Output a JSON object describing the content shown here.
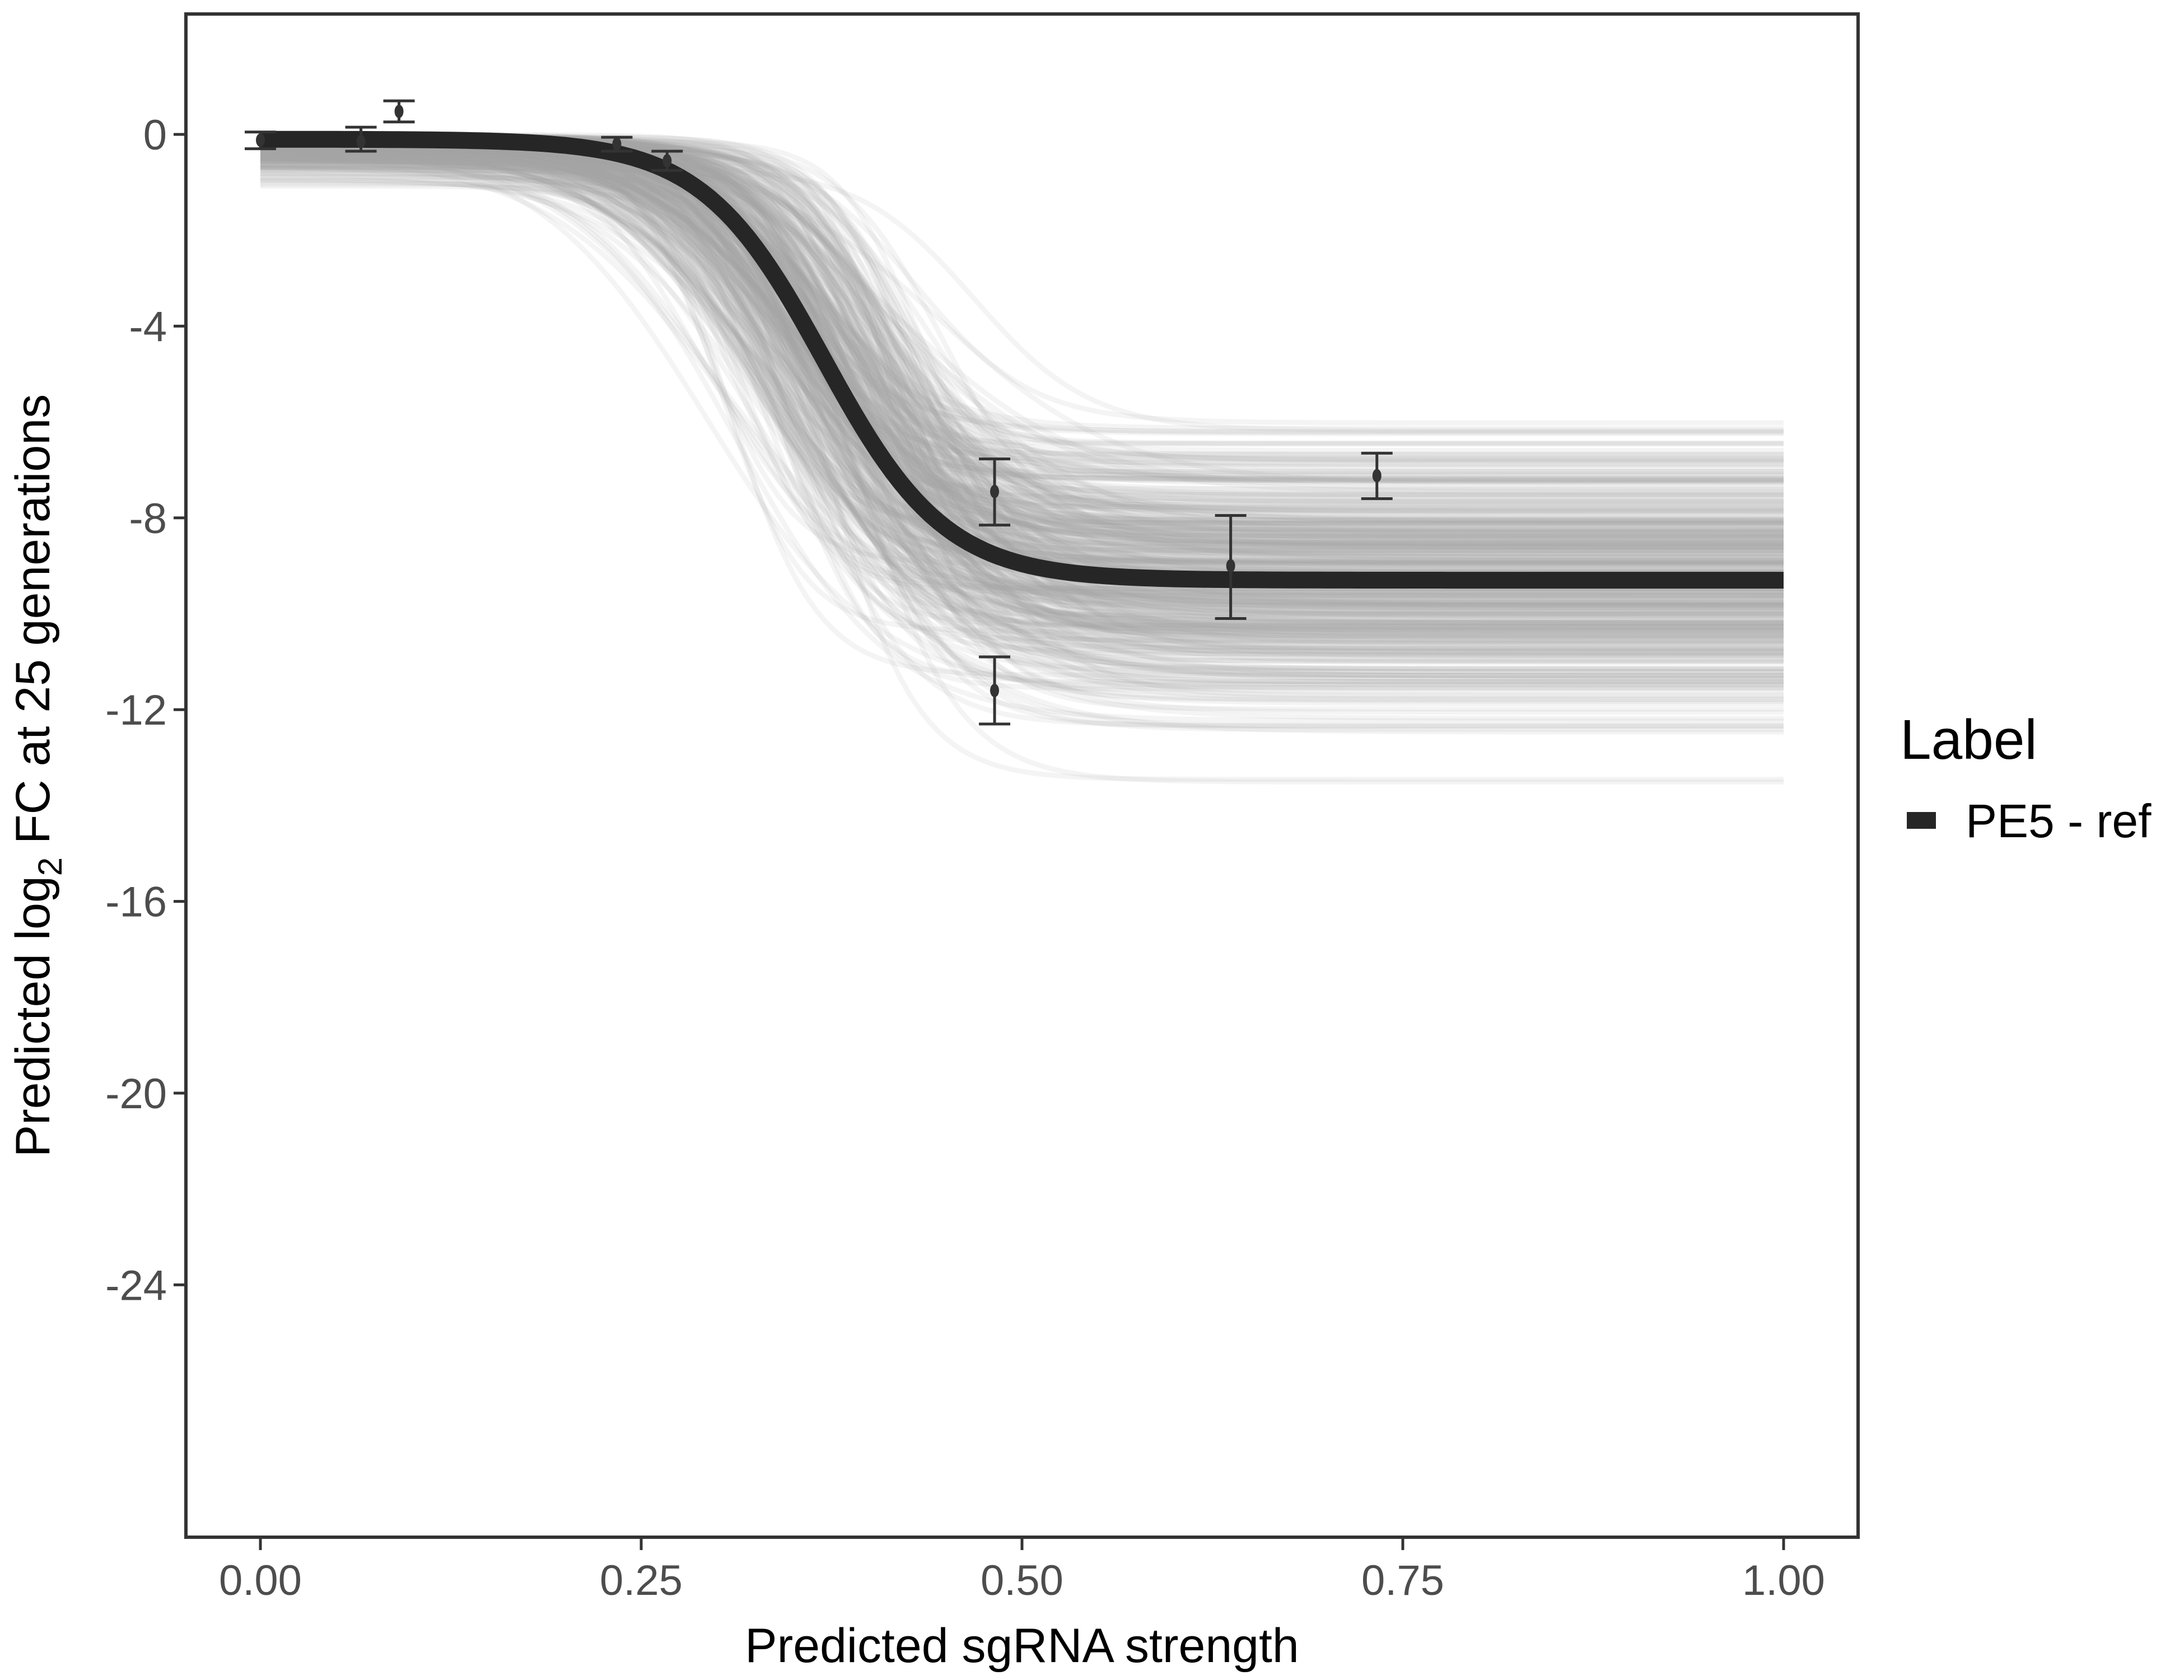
{
  "chart_data": {
    "type": "line",
    "xlabel": "Predicted sgRNA strength",
    "ylabel_parts": {
      "pre": "Predicted  log",
      "sub": "2",
      "post": " FC at 25 generations"
    },
    "xlim": [
      -0.05,
      1.05
    ],
    "ylim": [
      -29.3,
      2.5
    ],
    "x_ticks": [
      0,
      0.25,
      0.5,
      0.75,
      1.0
    ],
    "x_tick_labels": [
      "0.00",
      "0.25",
      "0.50",
      "0.75",
      "1.00"
    ],
    "y_ticks": [
      0,
      -4,
      -8,
      -12,
      -16,
      -20,
      -24
    ],
    "y_tick_labels": [
      "0",
      "-4",
      "-8",
      "-12",
      "-16",
      "-20",
      "-24"
    ],
    "grid": false,
    "legend": {
      "title": "Label",
      "placement": "right",
      "entries": [
        {
          "label": "PE5 - ref",
          "color": "#262626"
        }
      ]
    },
    "fit": {
      "name": "PE5 - ref",
      "model": "logistic",
      "upper": -0.1,
      "lower": -9.3,
      "midpoint": 0.37,
      "scale": 0.04,
      "color": "#262626"
    },
    "posterior_samples": {
      "count": 400,
      "color": "#a6a6a6",
      "upper_range": [
        0,
        -1.3
      ],
      "lower_range": [
        -5.8,
        -14.8
      ],
      "midpoint_range": [
        0.29,
        0.47
      ],
      "scale_range": [
        0.025,
        0.06
      ]
    },
    "points": [
      {
        "x": 0.0,
        "y": -0.12,
        "ymin": -0.3,
        "ymax": 0.05
      },
      {
        "x": 0.066,
        "y": -0.15,
        "ymin": -0.35,
        "ymax": 0.15
      },
      {
        "x": 0.091,
        "y": 0.48,
        "ymin": 0.26,
        "ymax": 0.7
      },
      {
        "x": 0.234,
        "y": -0.2,
        "ymin": -0.35,
        "ymax": -0.06
      },
      {
        "x": 0.267,
        "y": -0.55,
        "ymin": -0.75,
        "ymax": -0.35
      },
      {
        "x": 0.482,
        "y": -7.45,
        "ymin": -8.15,
        "ymax": -6.77
      },
      {
        "x": 0.482,
        "y": -11.6,
        "ymin": -12.3,
        "ymax": -10.9
      },
      {
        "x": 0.637,
        "y": -9.0,
        "ymin": -10.1,
        "ymax": -7.95
      },
      {
        "x": 0.733,
        "y": -7.12,
        "ymin": -7.6,
        "ymax": -6.65
      }
    ]
  }
}
